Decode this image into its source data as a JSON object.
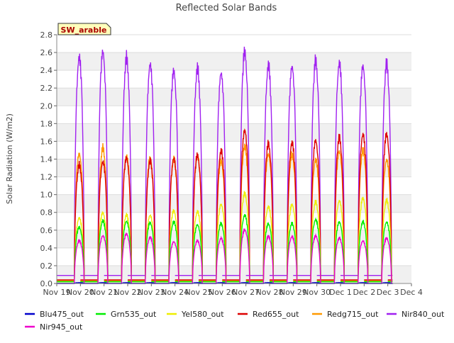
{
  "chart_data": {
    "type": "line",
    "title": "Reflected Solar Bands",
    "ylabel": "Solar Radiation (W/m2)",
    "xlabel": "",
    "ylim": [
      0,
      2.8
    ],
    "yticks": [
      "0.0",
      "0.2",
      "0.4",
      "0.6",
      "0.8",
      "1.0",
      "1.2",
      "1.4",
      "1.6",
      "1.8",
      "2.0",
      "2.2",
      "2.4",
      "2.6",
      "2.8"
    ],
    "xlim": [
      0,
      15
    ],
    "xticks": [
      "Nov 19",
      "Nov 20",
      "Nov 21",
      "Nov 22",
      "Nov 23",
      "Nov 24",
      "Nov 25",
      "Nov 26",
      "Nov 27",
      "Nov 28",
      "Nov 29",
      "Nov 30",
      "Dec 1",
      "Dec 2",
      "Dec 3",
      "Dec 4"
    ],
    "x_unit": "days since Nov 19",
    "annotation": "SW_arable",
    "grid": "horizontal bands",
    "legend_position": "bottom",
    "days": [
      "Nov 20",
      "Nov 21",
      "Nov 22",
      "Nov 23",
      "Nov 24",
      "Nov 25",
      "Nov 26",
      "Nov 27",
      "Nov 28",
      "Nov 29",
      "Nov 30",
      "Dec 1",
      "Dec 2",
      "Dec 3"
    ],
    "series": [
      {
        "name": "Blu475_out",
        "color": "#0000cc",
        "night": 0.0,
        "daily_peak": [
          0.01,
          0.01,
          0.01,
          0.01,
          0.01,
          0.01,
          0.01,
          0.01,
          0.01,
          0.01,
          0.01,
          0.01,
          0.01,
          0.01
        ]
      },
      {
        "name": "Grn535_out",
        "color": "#00ee00",
        "night": 0.02,
        "daily_peak": [
          0.66,
          0.73,
          0.73,
          0.71,
          0.72,
          0.69,
          0.7,
          0.8,
          0.7,
          0.7,
          0.75,
          0.72,
          0.72,
          0.72
        ]
      },
      {
        "name": "Yel580_out",
        "color": "#eeee00",
        "night": 0.02,
        "daily_peak": [
          0.77,
          0.83,
          0.8,
          0.8,
          0.85,
          0.84,
          0.93,
          1.05,
          0.9,
          0.93,
          0.95,
          0.97,
          1.0,
          0.97
        ]
      },
      {
        "name": "Red655_out",
        "color": "#dd0000",
        "night": 0.04,
        "daily_peak": [
          1.38,
          1.43,
          1.47,
          1.43,
          1.47,
          1.5,
          1.55,
          1.8,
          1.63,
          1.65,
          1.68,
          1.7,
          1.75,
          1.75
        ]
      },
      {
        "name": "Redg715_out",
        "color": "#ff9900",
        "night": 0.03,
        "daily_peak": [
          1.52,
          1.58,
          1.5,
          1.47,
          1.45,
          1.5,
          1.43,
          1.6,
          1.52,
          1.5,
          1.45,
          1.55,
          1.55,
          1.45
        ]
      },
      {
        "name": "Nir840_out",
        "color": "#a020f0",
        "night": 0.09,
        "daily_peak": [
          2.65,
          2.72,
          2.63,
          2.57,
          2.49,
          2.51,
          2.47,
          2.71,
          2.55,
          2.55,
          2.6,
          2.58,
          2.55,
          2.56
        ]
      },
      {
        "name": "Nir945_out",
        "color": "#ee00cc",
        "night": 0.0,
        "daily_peak": [
          0.5,
          0.56,
          0.58,
          0.54,
          0.49,
          0.5,
          0.53,
          0.63,
          0.55,
          0.55,
          0.56,
          0.53,
          0.5,
          0.53
        ]
      }
    ]
  }
}
